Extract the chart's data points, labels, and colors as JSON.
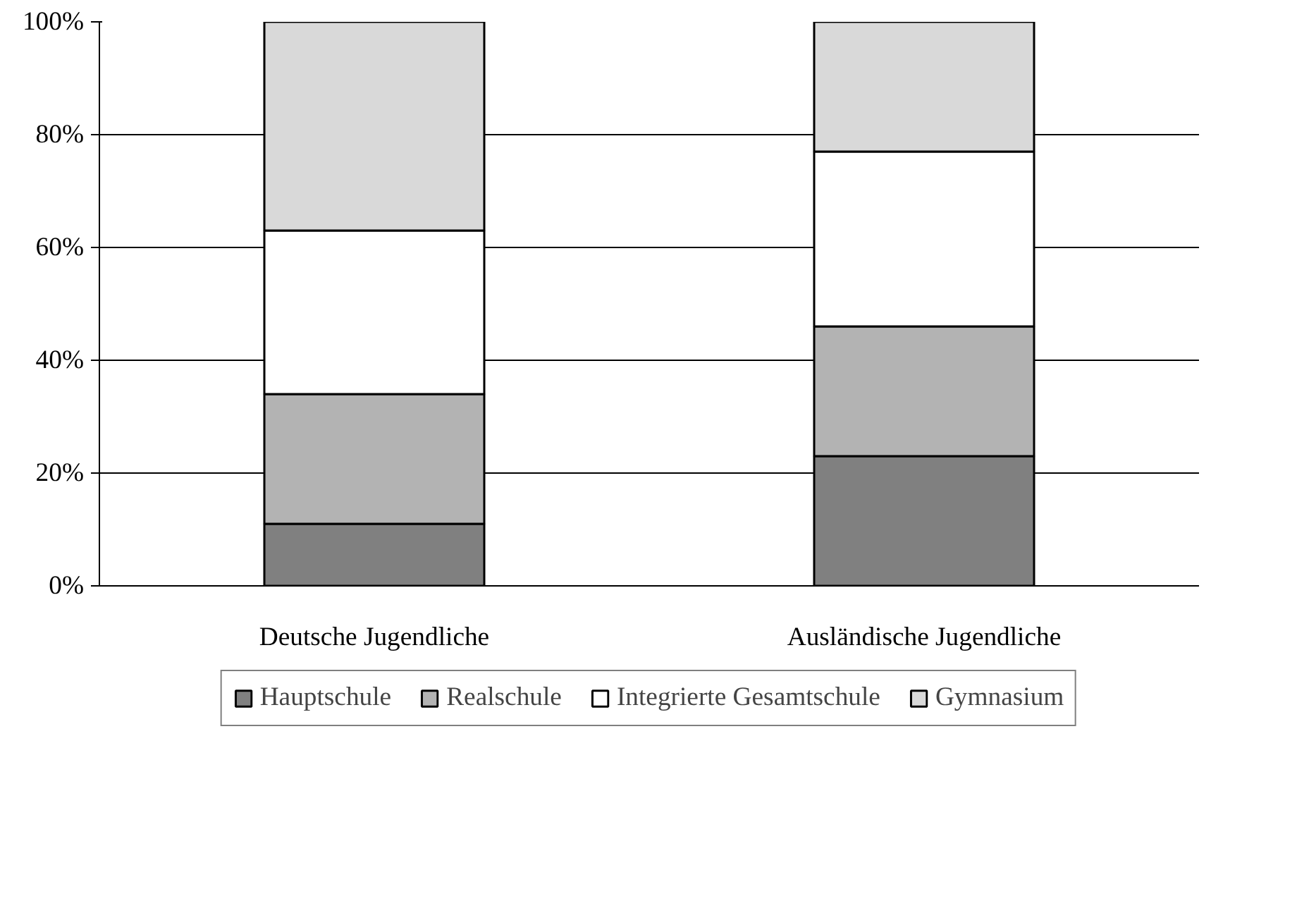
{
  "chart_data": {
    "type": "bar",
    "stacked": true,
    "categories": [
      "Deutsche Jugendliche",
      "Ausländische Jugendliche"
    ],
    "series": [
      {
        "name": "Hauptschule",
        "color": "#808080",
        "values": [
          11,
          23
        ]
      },
      {
        "name": "Realschule",
        "color": "#b3b3b3",
        "values": [
          23,
          23
        ]
      },
      {
        "name": "Integrierte Gesamtschule",
        "color": "#ffffff",
        "values": [
          29,
          31
        ]
      },
      {
        "name": "Gymnasium",
        "color": "#d9d9d9",
        "values": [
          37,
          23
        ]
      }
    ],
    "ylim": [
      0,
      100
    ],
    "yticks": [
      {
        "value": 0,
        "label": "0%"
      },
      {
        "value": 20,
        "label": "20%"
      },
      {
        "value": 40,
        "label": "40%"
      },
      {
        "value": 60,
        "label": "60%"
      },
      {
        "value": 80,
        "label": "80%"
      },
      {
        "value": 100,
        "label": "100%"
      }
    ],
    "grid": "y",
    "legend": "bottom"
  }
}
